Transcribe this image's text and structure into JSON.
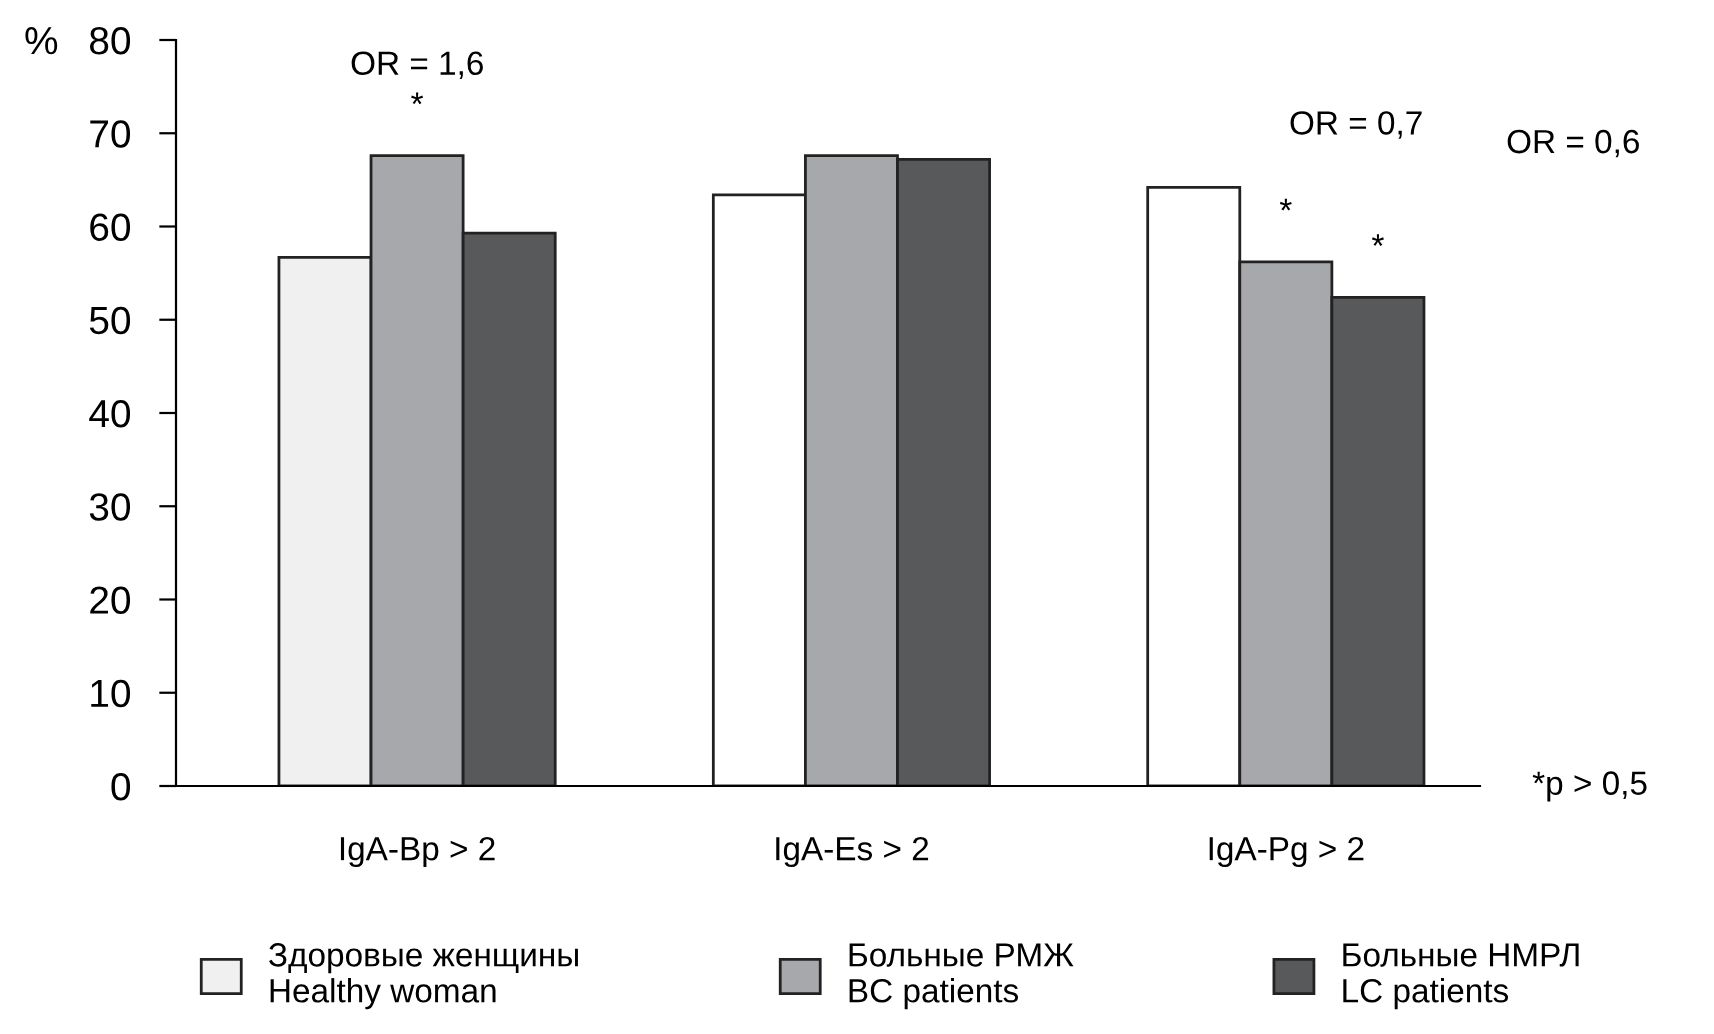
{
  "chart_data": {
    "type": "bar",
    "ylabel": "%",
    "categories": [
      "IgA-Bp > 2",
      "IgA-Es > 2",
      "IgA-Pg > 2"
    ],
    "series": [
      {
        "name": "Здоровые женщины\nHealthy woman",
        "color": "#f0f0f0",
        "colors": [
          "#f0f0f0",
          "#ffffff",
          "#ffffff"
        ],
        "values": [
          56.7,
          63.4,
          64.2
        ]
      },
      {
        "name": "Больные РМЖ\nBC patients",
        "color": "#a7a8ab",
        "values": [
          67.6,
          67.6,
          56.2
        ],
        "value_labels": [
          "*",
          null,
          "*"
        ]
      },
      {
        "name": "Больные НМРЛ\nLC patients",
        "color": "#58595b",
        "values": [
          59.3,
          67.2,
          52.4
        ],
        "value_labels": [
          null,
          null,
          "*"
        ]
      }
    ],
    "ylim": [
      0,
      80
    ],
    "yticks": [
      0,
      10,
      20,
      30,
      40,
      50,
      60,
      70,
      80
    ],
    "grid": false,
    "legend": "bottom",
    "annotations": [
      "OR = 1,6",
      "OR = 0,7",
      "OR = 0,6",
      "*p > 0,5"
    ]
  }
}
